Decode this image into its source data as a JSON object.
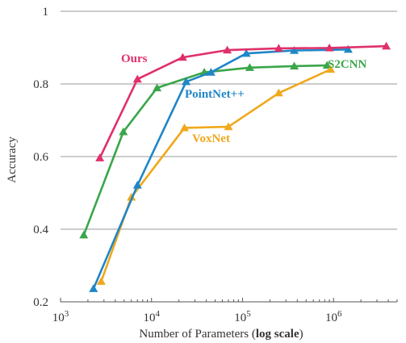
{
  "chart_data": {
    "type": "line",
    "xscale": "log",
    "xlim": [
      1000,
      5000000
    ],
    "ylim": [
      0.2,
      1.0
    ],
    "grid": "horizontal",
    "legend": "inline labels",
    "xlabel_prefix": "Number of Parameters (",
    "xlabel_bold": "log scale",
    "xlabel_suffix": ")",
    "ylabel": "Accuracy",
    "x_ticks": [
      1000,
      10000,
      100000,
      1000000
    ],
    "x_tick_labels": [
      {
        "base": "10",
        "exp": "3"
      },
      {
        "base": "10",
        "exp": "4"
      },
      {
        "base": "10",
        "exp": "5"
      },
      {
        "base": "10",
        "exp": "6"
      }
    ],
    "y_ticks": [
      0.2,
      0.4,
      0.6,
      0.8,
      1.0
    ],
    "y_tick_labels": [
      "0.2",
      "0.4",
      "0.6",
      "0.8",
      "1"
    ],
    "series": [
      {
        "name": "S2CNN",
        "color": "#3aa64a",
        "x": [
          1800,
          4900,
          11500,
          38000,
          120000,
          370000,
          850000
        ],
        "y": [
          0.384,
          0.668,
          0.789,
          0.832,
          0.845,
          0.849,
          0.851
        ]
      },
      {
        "name": "VoxNet",
        "color": "#f0a81c",
        "x": [
          2800,
          6000,
          23000,
          70000,
          250000,
          930000
        ],
        "y": [
          0.256,
          0.488,
          0.679,
          0.682,
          0.775,
          0.84
        ]
      },
      {
        "name": "PointNet++",
        "color": "#1f86c7",
        "x": [
          2300,
          7000,
          24000,
          45000,
          110000,
          370000,
          1450000
        ],
        "y": [
          0.236,
          0.521,
          0.806,
          0.832,
          0.884,
          0.892,
          0.895
        ]
      },
      {
        "name": "Ours",
        "color": "#e0306a",
        "x": [
          2700,
          7000,
          22000,
          68000,
          250000,
          900000,
          3800000
        ],
        "y": [
          0.596,
          0.813,
          0.873,
          0.893,
          0.898,
          0.899,
          0.904
        ]
      }
    ]
  }
}
